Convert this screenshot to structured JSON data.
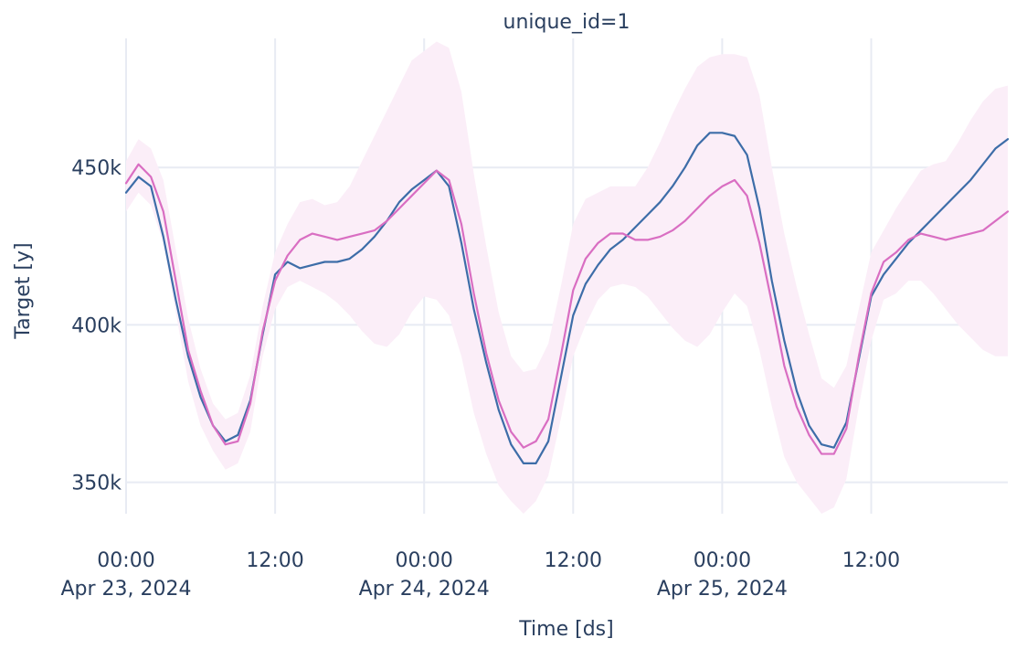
{
  "chart_data": {
    "type": "line",
    "title": "unique_id=1",
    "xlabel": "Time [ds]",
    "ylabel": "Target [y]",
    "x_range": [
      "2024-04-23T00:00",
      "2024-04-25T23:00"
    ],
    "ylim": [
      340000,
      491000
    ],
    "grid": true,
    "x_ticks": [
      {
        "value": "2024-04-23T00:00",
        "time": "00:00",
        "date": "Apr 23, 2024"
      },
      {
        "value": "2024-04-23T12:00",
        "time": "12:00",
        "date": ""
      },
      {
        "value": "2024-04-24T00:00",
        "time": "00:00",
        "date": "Apr 24, 2024"
      },
      {
        "value": "2024-04-24T12:00",
        "time": "12:00",
        "date": ""
      },
      {
        "value": "2024-04-25T00:00",
        "time": "00:00",
        "date": "Apr 25, 2024"
      },
      {
        "value": "2024-04-25T12:00",
        "time": "12:00",
        "date": ""
      }
    ],
    "y_ticks": [
      {
        "value": 350000,
        "label": "350k"
      },
      {
        "value": 400000,
        "label": "400k"
      },
      {
        "value": 450000,
        "label": "450k"
      }
    ],
    "colors": {
      "actual": "#3d6da8",
      "forecast": "#d96ec2",
      "band": "#fbeef8",
      "grid": "#e8ebf3"
    },
    "x_start": "2024-04-23T00:00",
    "x_step_hours": 1,
    "series": [
      {
        "color": "#3d6da8",
        "values": [
          442000,
          447000,
          444000,
          428000,
          408000,
          390000,
          377000,
          368000,
          363000,
          365000,
          376000,
          397000,
          416000,
          420000,
          418000,
          419000,
          420000,
          420000,
          421000,
          424000,
          428000,
          433000,
          439000,
          443000,
          446000,
          449000,
          444000,
          426000,
          405000,
          388000,
          373000,
          362000,
          356000,
          356000,
          363000,
          383000,
          403000,
          413000,
          419000,
          424000,
          427000,
          431000,
          435000,
          439000,
          444000,
          450000,
          457000,
          461000,
          461000,
          460000,
          454000,
          437000,
          414000,
          395000,
          379000,
          368000,
          362000,
          361000,
          369000,
          389000,
          409000,
          416000,
          421000,
          426000,
          430000,
          434000,
          438000,
          442000,
          446000,
          451000,
          456000,
          459000
        ]
      },
      {
        "color": "#d96ec2",
        "values": [
          445000,
          451000,
          447000,
          436000,
          414000,
          392000,
          379000,
          368000,
          362000,
          363000,
          375000,
          398000,
          414000,
          422000,
          427000,
          429000,
          428000,
          427000,
          428000,
          429000,
          430000,
          433000,
          437000,
          441000,
          445000,
          449000,
          446000,
          432000,
          410000,
          391000,
          376000,
          366000,
          361000,
          363000,
          370000,
          390000,
          411000,
          421000,
          426000,
          429000,
          429000,
          427000,
          427000,
          428000,
          430000,
          433000,
          437000,
          441000,
          444000,
          446000,
          441000,
          426000,
          407000,
          387000,
          374000,
          365000,
          359000,
          359000,
          367000,
          390000,
          410000,
          420000,
          423000,
          427000,
          429000,
          428000,
          427000,
          428000,
          429000,
          430000,
          433000,
          436000
        ]
      }
    ],
    "band": {
      "upper": [
        452000,
        459000,
        456000,
        446000,
        424000,
        402000,
        386000,
        375000,
        370000,
        372000,
        384000,
        406000,
        423000,
        432000,
        439000,
        440000,
        438000,
        439000,
        444000,
        452000,
        460000,
        468000,
        476000,
        484000,
        487000,
        490000,
        488000,
        474000,
        448000,
        425000,
        404000,
        390000,
        385000,
        386000,
        394000,
        412000,
        432000,
        440000,
        442000,
        444000,
        444000,
        444000,
        450000,
        458000,
        467000,
        475000,
        482000,
        485000,
        486000,
        486000,
        485000,
        473000,
        450000,
        429000,
        412000,
        397000,
        383000,
        380000,
        387000,
        405000,
        423000,
        430000,
        437000,
        443000,
        449000,
        451000,
        452000,
        458000,
        465000,
        471000,
        475000,
        476000
      ],
      "lower": [
        436000,
        442000,
        438000,
        426000,
        404000,
        382000,
        368000,
        360000,
        354000,
        356000,
        366000,
        390000,
        405000,
        412000,
        414000,
        412000,
        410000,
        407000,
        403000,
        398000,
        394000,
        393000,
        397000,
        404000,
        409000,
        408000,
        403000,
        390000,
        372000,
        359000,
        349000,
        344000,
        340000,
        344000,
        352000,
        370000,
        390000,
        400000,
        408000,
        412000,
        413000,
        412000,
        409000,
        404000,
        399000,
        395000,
        393000,
        397000,
        404000,
        410000,
        406000,
        392000,
        374000,
        358000,
        350000,
        345000,
        340000,
        342000,
        351000,
        374000,
        395000,
        408000,
        410000,
        414000,
        414000,
        410000,
        405000,
        400000,
        396000,
        392000,
        390000,
        390000
      ]
    }
  }
}
